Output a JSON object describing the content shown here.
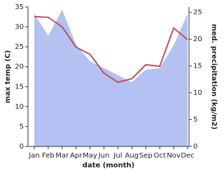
{
  "chart_data": {
    "type": "line",
    "x_label": "date (month)",
    "y_label": "max temp (C)",
    "y2_label": "med. precipitation (kg/m2)",
    "categories": [
      "Jan",
      "Feb",
      "Mar",
      "Apr",
      "May",
      "Jun",
      "Jul",
      "Aug",
      "Sep",
      "Oct",
      "Nov",
      "Dec"
    ],
    "series": [
      {
        "name": "med. precipitation",
        "type": "area",
        "axis": "y2",
        "color": "#b3c2f2",
        "values": [
          24.7,
          20.6,
          25.5,
          18.9,
          15.9,
          14.6,
          13.3,
          12.0,
          14.3,
          14.6,
          18.9,
          24.7
        ]
      },
      {
        "name": "max temp",
        "type": "line",
        "axis": "y",
        "color": "#c0505e",
        "values": [
          32.6,
          32.4,
          30.0,
          24.9,
          23.1,
          18.4,
          16.1,
          17.0,
          20.5,
          20.1,
          29.7,
          26.8
        ]
      }
    ],
    "ylim": [
      0,
      35
    ],
    "yticks": [
      0,
      5,
      10,
      15,
      20,
      25,
      30,
      35
    ],
    "y2lim": [
      0,
      26
    ],
    "y2ticks": [
      0,
      5,
      10,
      15,
      20,
      25
    ]
  }
}
